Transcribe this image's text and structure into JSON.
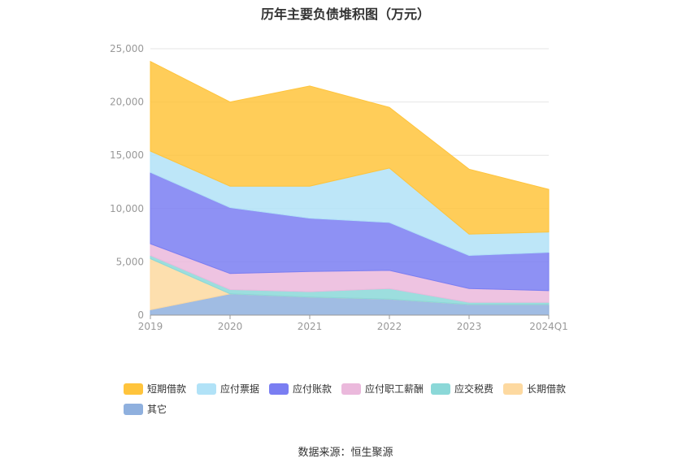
{
  "title": "历年主要负债堆积图（万元）",
  "source": "数据来源：恒生聚源",
  "chart_data": {
    "type": "area",
    "stacked": true,
    "categories": [
      "2019",
      "2020",
      "2021",
      "2022",
      "2023",
      "2024Q1"
    ],
    "y_ticks": [
      "0",
      "5,000",
      "10,000",
      "15,000",
      "20,000",
      "25,000"
    ],
    "ylim": [
      0,
      25000
    ],
    "grid": true,
    "legend_position": "bottom",
    "series": [
      {
        "name": "其它",
        "color": "#8fb0de",
        "values": [
          500,
          2000,
          1700,
          1500,
          1000,
          1000
        ]
      },
      {
        "name": "长期借款",
        "color": "#fdd9a0",
        "values": [
          4800,
          0,
          0,
          0,
          0,
          0
        ]
      },
      {
        "name": "应交税费",
        "color": "#8bd8d8",
        "values": [
          300,
          400,
          500,
          1000,
          200,
          200
        ]
      },
      {
        "name": "应付职工薪酬",
        "color": "#ebb9dc",
        "values": [
          1100,
          1500,
          1900,
          1700,
          1300,
          1100
        ]
      },
      {
        "name": "应付账款",
        "color": "#7a7ef2",
        "values": [
          6700,
          6200,
          5000,
          4500,
          3100,
          3600
        ]
      },
      {
        "name": "应付票据",
        "color": "#b1e2f7",
        "values": [
          2000,
          2000,
          3000,
          5100,
          2000,
          1900
        ]
      },
      {
        "name": "短期借款",
        "color": "#ffc43c",
        "values": [
          8400,
          7900,
          9400,
          5700,
          6100,
          4000
        ]
      }
    ],
    "legend_order": [
      "短期借款",
      "应付票据",
      "应付账款",
      "应付职工薪酬",
      "应交税费",
      "长期借款",
      "其它"
    ]
  }
}
